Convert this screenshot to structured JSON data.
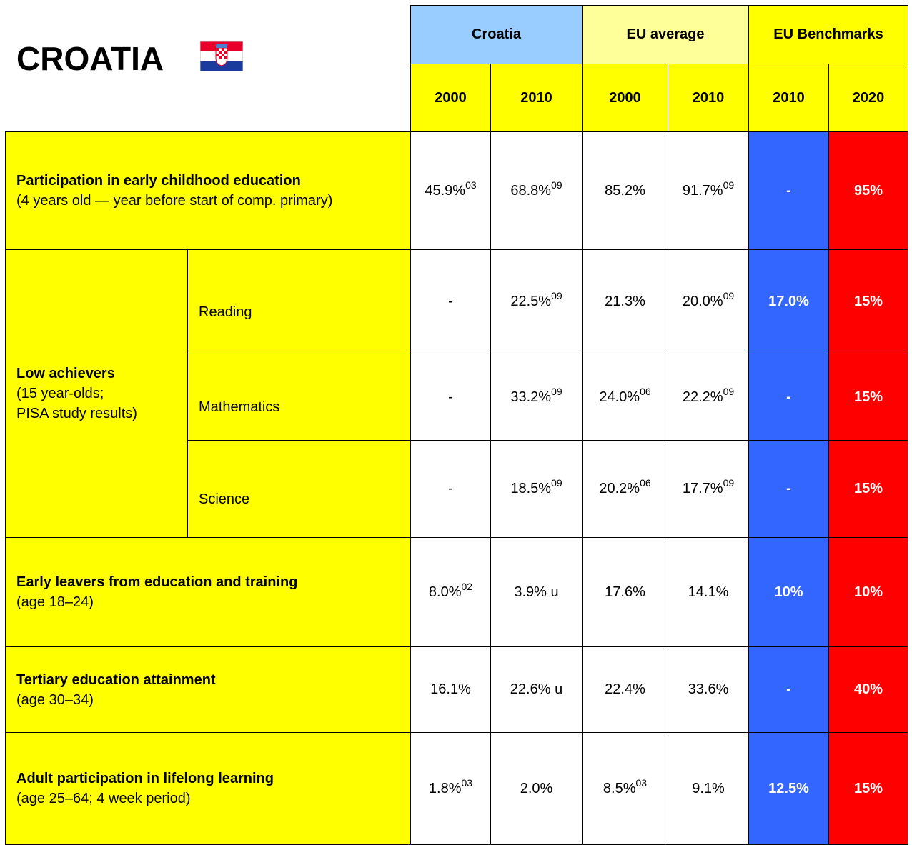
{
  "header": {
    "title": "CROATIA",
    "groups": [
      "Croatia",
      "EU average",
      "EU Benchmarks"
    ],
    "years": [
      "2000",
      "2010",
      "2000",
      "2010",
      "2010",
      "2020"
    ]
  },
  "rows": [
    {
      "label": "Participation in early childhood education",
      "note": [
        "(4 years old — year before start of comp. primary)"
      ],
      "cells": [
        {
          "text": "45.9%",
          "sup": "03"
        },
        {
          "text": "68.8%",
          "sup": "09"
        },
        {
          "text": "85.2%"
        },
        {
          "text": "91.7%",
          "sup": "09"
        },
        {
          "text": "-"
        },
        {
          "text": "95%"
        }
      ]
    },
    {
      "label": "Low achievers",
      "note": [
        "(15 year-olds;",
        "PISA study results)"
      ],
      "subrows": [
        {
          "label": "Reading",
          "cells": [
            {
              "text": "-"
            },
            {
              "text": "22.5%",
              "sup": "09"
            },
            {
              "text": "21.3%"
            },
            {
              "text": "20.0%",
              "sup": "09"
            },
            {
              "text": "17.0%"
            },
            {
              "text": "15%"
            }
          ]
        },
        {
          "label": "Mathematics",
          "cells": [
            {
              "text": "-"
            },
            {
              "text": "33.2%",
              "sup": "09"
            },
            {
              "text": "24.0%",
              "sup": "06"
            },
            {
              "text": "22.2%",
              "sup": "09"
            },
            {
              "text": "-"
            },
            {
              "text": "15%"
            }
          ]
        },
        {
          "label": "Science",
          "cells": [
            {
              "text": "-"
            },
            {
              "text": "18.5%",
              "sup": "09"
            },
            {
              "text": "20.2%",
              "sup": "06"
            },
            {
              "text": "17.7%",
              "sup": "09"
            },
            {
              "text": "-"
            },
            {
              "text": "15%"
            }
          ]
        }
      ]
    },
    {
      "label": "Early leavers from education and training",
      "note": [
        "(age 18–24)"
      ],
      "cells": [
        {
          "text": "8.0%",
          "sup": "02"
        },
        {
          "text": "3.9% u"
        },
        {
          "text": "17.6%"
        },
        {
          "text": "14.1%"
        },
        {
          "text": "10%"
        },
        {
          "text": "10%"
        }
      ]
    },
    {
      "label": "Tertiary education attainment",
      "note": [
        "(age 30–34)"
      ],
      "cells": [
        {
          "text": "16.1%"
        },
        {
          "text": "22.6% u"
        },
        {
          "text": "22.4%"
        },
        {
          "text": "33.6%"
        },
        {
          "text": "-"
        },
        {
          "text": "40%"
        }
      ]
    },
    {
      "label": "Adult participation in lifelong learning",
      "note": [
        "(age 25–64; 4 week period)"
      ],
      "cells": [
        {
          "text": "1.8%",
          "sup": "03"
        },
        {
          "text": "2.0%"
        },
        {
          "text": "8.5%",
          "sup": "03"
        },
        {
          "text": "9.1%"
        },
        {
          "text": "12.5%"
        },
        {
          "text": "15%"
        }
      ]
    }
  ]
}
